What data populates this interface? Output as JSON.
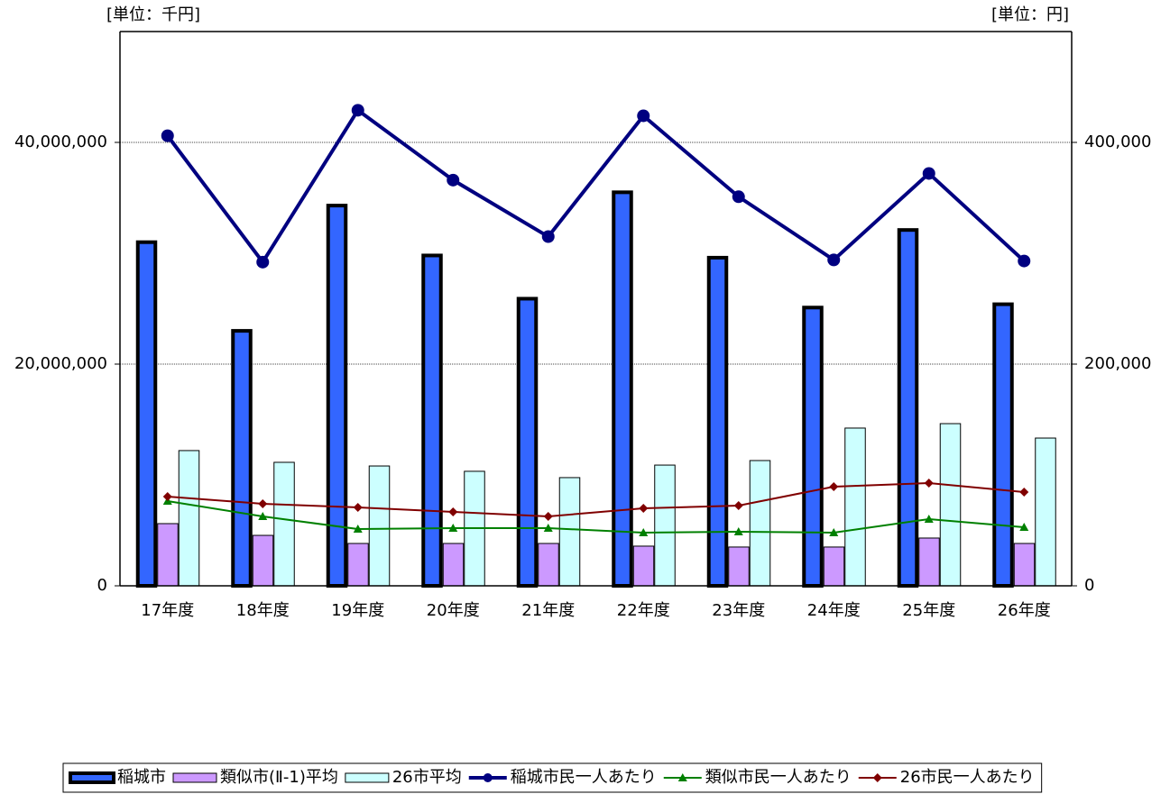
{
  "chart_data": {
    "type": "bar",
    "left_unit": "[単位：千円]",
    "right_unit": "[単位：円]",
    "categories": [
      "17年度",
      "18年度",
      "19年度",
      "20年度",
      "21年度",
      "22年度",
      "23年度",
      "24年度",
      "25年度",
      "26年度"
    ],
    "series": [
      {
        "name": "稲城市",
        "type": "bar",
        "color": "#3366ff",
        "values": [
          31000000,
          23000000,
          34300000,
          29800000,
          25900000,
          35500000,
          29600000,
          25100000,
          32100000,
          25400000
        ]
      },
      {
        "name": "類似市(Ⅱ-1)平均",
        "type": "bar",
        "color": "#cc99ff",
        "values": [
          5610000,
          4550000,
          3820000,
          3820000,
          3820000,
          3580000,
          3500000,
          3500000,
          4310000,
          3820000
        ]
      },
      {
        "name": "26市平均",
        "type": "bar",
        "color": "#ccffff",
        "values": [
          12200000,
          11140000,
          10810000,
          10330000,
          9760000,
          10890000,
          11300000,
          14230000,
          14630000,
          13330000
        ]
      },
      {
        "name": "稲城市民一人あたり",
        "type": "line",
        "axis": "y2",
        "color": "#000080",
        "marker": "circle",
        "values": [
          406000,
          292000,
          429000,
          366000,
          315000,
          424000,
          351000,
          294000,
          372000,
          293000
        ]
      },
      {
        "name": "類似市民一人あたり",
        "type": "line",
        "axis": "y2",
        "color": "#008000",
        "marker": "triangle",
        "values": [
          76400,
          62600,
          51200,
          52000,
          52000,
          48000,
          48800,
          48000,
          60200,
          52800
        ]
      },
      {
        "name": "26市民一人あたり",
        "type": "line",
        "axis": "y2",
        "color": "#800000",
        "marker": "diamond",
        "values": [
          80500,
          74000,
          70700,
          66700,
          62600,
          69900,
          72400,
          89400,
          92700,
          84600
        ]
      }
    ],
    "ylim": [
      0,
      50000000
    ],
    "yticks": [
      0,
      {
        "value": 20000000,
        "label": "20,000,000"
      },
      {
        "value": 40000000,
        "label": "40,000,000"
      }
    ],
    "y2lim": [
      0,
      500000
    ],
    "y2ticks": [
      0,
      {
        "value": 200000,
        "label": "200,000"
      },
      {
        "value": 400000,
        "label": "400,000"
      }
    ],
    "grid": true,
    "legend": "bottom"
  }
}
